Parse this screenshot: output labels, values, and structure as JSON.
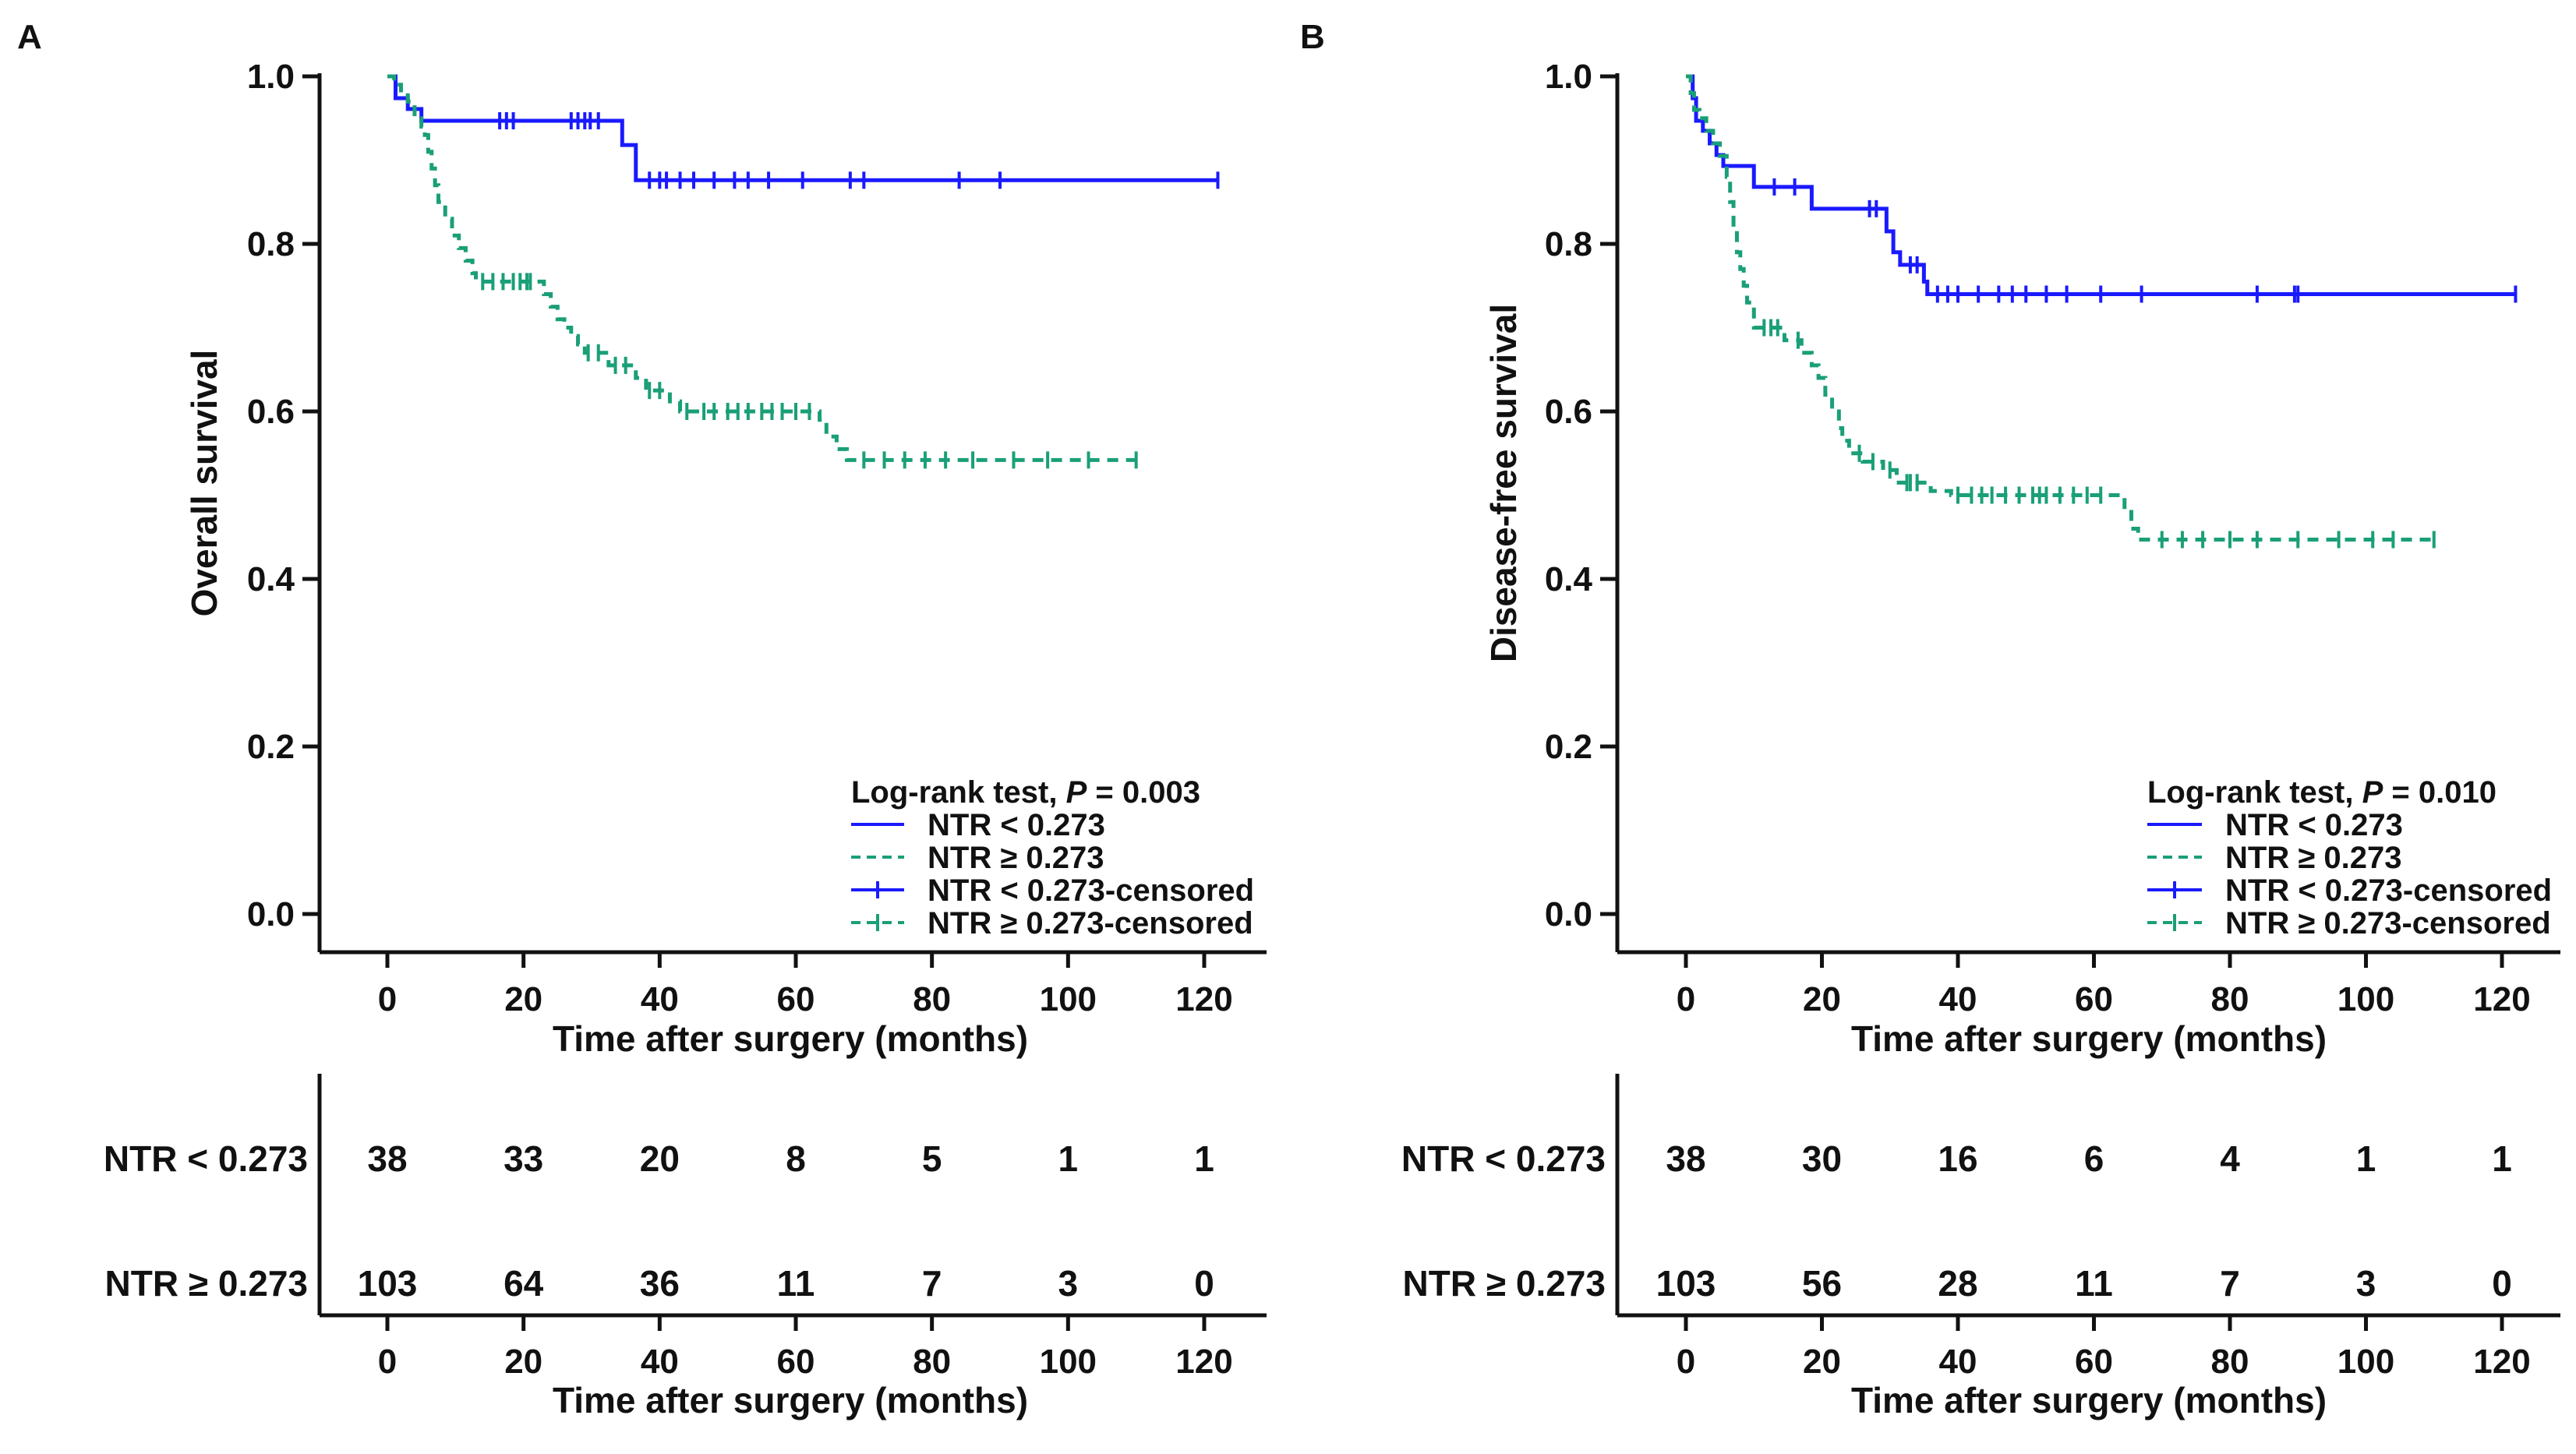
{
  "colors": {
    "low": "#1a1aff",
    "high": "#1a9f78",
    "axis": "#111111"
  },
  "chart_data": [
    {
      "panel": "A",
      "type": "line",
      "subtype": "kaplan-meier",
      "title": "",
      "xlabel": "Time after surgery (months)",
      "ylabel": "Overall survival",
      "xlim": [
        -10,
        130
      ],
      "ylim": [
        0,
        1
      ],
      "x_ticks": [
        "0",
        "20",
        "40",
        "60",
        "80",
        "100",
        "120"
      ],
      "y_ticks": [
        "0.0",
        "0.2",
        "0.4",
        "0.6",
        "0.8",
        "1.0"
      ],
      "legend": {
        "position": "bottom-right",
        "test_label": "Log-rank test, ",
        "p_label": "P",
        "p_value": " = 0.003",
        "entries": [
          "NTR < 0.273",
          "NTR ≥ 0.273",
          "NTR < 0.273-censored",
          "NTR ≥ 0.273-censored"
        ]
      },
      "series": [
        {
          "name": "NTR < 0.273",
          "color": "#1a1aff",
          "dash": "solid",
          "steps": [
            [
              0,
              1.0
            ],
            [
              1.2,
              0.974
            ],
            [
              3.0,
              0.961
            ],
            [
              5.0,
              0.947
            ],
            [
              31.8,
              0.947
            ],
            [
              34.5,
              0.918
            ],
            [
              36.5,
              0.876
            ],
            [
              122,
              0.876
            ]
          ],
          "censored_x": [
            16.5,
            17.5,
            18.5,
            27,
            28,
            29,
            29.8,
            31,
            38.5,
            40,
            41,
            43,
            45,
            48,
            51,
            53,
            56,
            61,
            68,
            70,
            84,
            90,
            122
          ]
        },
        {
          "name": "NTR ≥ 0.273",
          "color": "#1a9f78",
          "dash": "dashed",
          "steps": [
            [
              0,
              1.0
            ],
            [
              1.0,
              0.99
            ],
            [
              2.0,
              0.98
            ],
            [
              3.0,
              0.97
            ],
            [
              4.0,
              0.95
            ],
            [
              5.0,
              0.94
            ],
            [
              5.5,
              0.93
            ],
            [
              6.0,
              0.91
            ],
            [
              6.5,
              0.89
            ],
            [
              7.0,
              0.87
            ],
            [
              7.5,
              0.85
            ],
            [
              8.5,
              0.83
            ],
            [
              9.5,
              0.81
            ],
            [
              10.5,
              0.795
            ],
            [
              11.5,
              0.78
            ],
            [
              12.5,
              0.765
            ],
            [
              13.0,
              0.755
            ],
            [
              23.0,
              0.74
            ],
            [
              24.0,
              0.725
            ],
            [
              25.0,
              0.71
            ],
            [
              26.0,
              0.7
            ],
            [
              27.0,
              0.69
            ],
            [
              28.0,
              0.68
            ],
            [
              29.0,
              0.67
            ],
            [
              32.5,
              0.655
            ],
            [
              36.5,
              0.64
            ],
            [
              38.0,
              0.625
            ],
            [
              41.5,
              0.612
            ],
            [
              43.0,
              0.6
            ],
            [
              63.5,
              0.59
            ],
            [
              64.5,
              0.57
            ],
            [
              66.0,
              0.555
            ],
            [
              67.5,
              0.542
            ],
            [
              110,
              0.542
            ]
          ],
          "censored_x": [
            14,
            15.5,
            17,
            18.5,
            19.5,
            20.5,
            21,
            29.5,
            31,
            33.5,
            35,
            38.5,
            40,
            44,
            46.5,
            48,
            50,
            51.5,
            53,
            55,
            56.5,
            58,
            60,
            62,
            70,
            73,
            76,
            79,
            82,
            86,
            92,
            97,
            103,
            110
          ]
        }
      ],
      "risk_table": {
        "xlabel": "Time after surgery (months)",
        "x_ticks": [
          "0",
          "20",
          "40",
          "60",
          "80",
          "100",
          "120"
        ],
        "rows": [
          {
            "label": "NTR < 0.273",
            "values": [
              "38",
              "33",
              "20",
              "8",
              "5",
              "1",
              "1"
            ]
          },
          {
            "label": "NTR ≥ 0.273",
            "values": [
              "103",
              "64",
              "36",
              "11",
              "7",
              "3",
              "0"
            ]
          }
        ]
      }
    },
    {
      "panel": "B",
      "type": "line",
      "subtype": "kaplan-meier",
      "title": "",
      "xlabel": "Time after surgery (months)",
      "ylabel": "Disease-free survival",
      "xlim": [
        -10,
        130
      ],
      "ylim": [
        0,
        1
      ],
      "x_ticks": [
        "0",
        "20",
        "40",
        "60",
        "80",
        "100",
        "120"
      ],
      "y_ticks": [
        "0.0",
        "0.2",
        "0.4",
        "0.6",
        "0.8",
        "1.0"
      ],
      "legend": {
        "position": "bottom-right",
        "test_label": "Log-rank test, ",
        "p_label": "P",
        "p_value": " = 0.010",
        "entries": [
          "NTR < 0.273",
          "NTR ≥ 0.273",
          "NTR < 0.273-censored",
          "NTR ≥ 0.273-censored"
        ]
      },
      "series": [
        {
          "name": "NTR < 0.273",
          "color": "#1a1aff",
          "dash": "solid",
          "steps": [
            [
              0,
              1.0
            ],
            [
              1.0,
              0.974
            ],
            [
              1.5,
              0.947
            ],
            [
              2.5,
              0.935
            ],
            [
              3.5,
              0.92
            ],
            [
              4.5,
              0.906
            ],
            [
              5.5,
              0.893
            ],
            [
              10,
              0.868
            ],
            [
              18.5,
              0.842
            ],
            [
              29.5,
              0.815
            ],
            [
              30.5,
              0.79
            ],
            [
              31.5,
              0.775
            ],
            [
              35,
              0.755
            ],
            [
              35.5,
              0.74
            ],
            [
              122,
              0.74
            ]
          ],
          "censored_x": [
            13,
            16,
            27,
            28,
            33,
            34,
            37,
            38.5,
            40,
            43,
            46,
            48,
            50,
            53,
            56,
            61,
            67,
            84,
            89.5,
            90,
            122
          ]
        },
        {
          "name": "NTR ≥ 0.273",
          "color": "#1a9f78",
          "dash": "dashed",
          "steps": [
            [
              0,
              1.0
            ],
            [
              0.7,
              0.98
            ],
            [
              1.2,
              0.96
            ],
            [
              2.0,
              0.95
            ],
            [
              3.0,
              0.935
            ],
            [
              4.0,
              0.92
            ],
            [
              5.0,
              0.905
            ],
            [
              6.0,
              0.88
            ],
            [
              6.5,
              0.85
            ],
            [
              7.0,
              0.82
            ],
            [
              7.5,
              0.79
            ],
            [
              8.0,
              0.77
            ],
            [
              8.5,
              0.75
            ],
            [
              9.0,
              0.73
            ],
            [
              10.0,
              0.7
            ],
            [
              14.5,
              0.685
            ],
            [
              17.0,
              0.67
            ],
            [
              18.5,
              0.655
            ],
            [
              19.5,
              0.64
            ],
            [
              20.5,
              0.62
            ],
            [
              21.5,
              0.6
            ],
            [
              22.5,
              0.58
            ],
            [
              23.0,
              0.565
            ],
            [
              24.0,
              0.55
            ],
            [
              26.0,
              0.54
            ],
            [
              29.0,
              0.53
            ],
            [
              31.0,
              0.515
            ],
            [
              36.0,
              0.505
            ],
            [
              39.0,
              0.5
            ],
            [
              64.5,
              0.48
            ],
            [
              65.5,
              0.46
            ],
            [
              66.5,
              0.447
            ],
            [
              110,
              0.447
            ]
          ],
          "censored_x": [
            11.5,
            12.5,
            13.5,
            16.5,
            25.5,
            27.5,
            30,
            32.5,
            33,
            34,
            40,
            42,
            43.5,
            45,
            47,
            49,
            51,
            52,
            53,
            55,
            57,
            59,
            61,
            70,
            73,
            76,
            80,
            84,
            90,
            96,
            101,
            104,
            110
          ]
        }
      ],
      "risk_table": {
        "xlabel": "Time after surgery (months)",
        "x_ticks": [
          "0",
          "20",
          "40",
          "60",
          "80",
          "100",
          "120"
        ],
        "rows": [
          {
            "label": "NTR < 0.273",
            "values": [
              "38",
              "30",
              "16",
              "6",
              "4",
              "1",
              "1"
            ]
          },
          {
            "label": "NTR ≥ 0.273",
            "values": [
              "103",
              "56",
              "28",
              "11",
              "7",
              "3",
              "0"
            ]
          }
        ]
      }
    }
  ]
}
